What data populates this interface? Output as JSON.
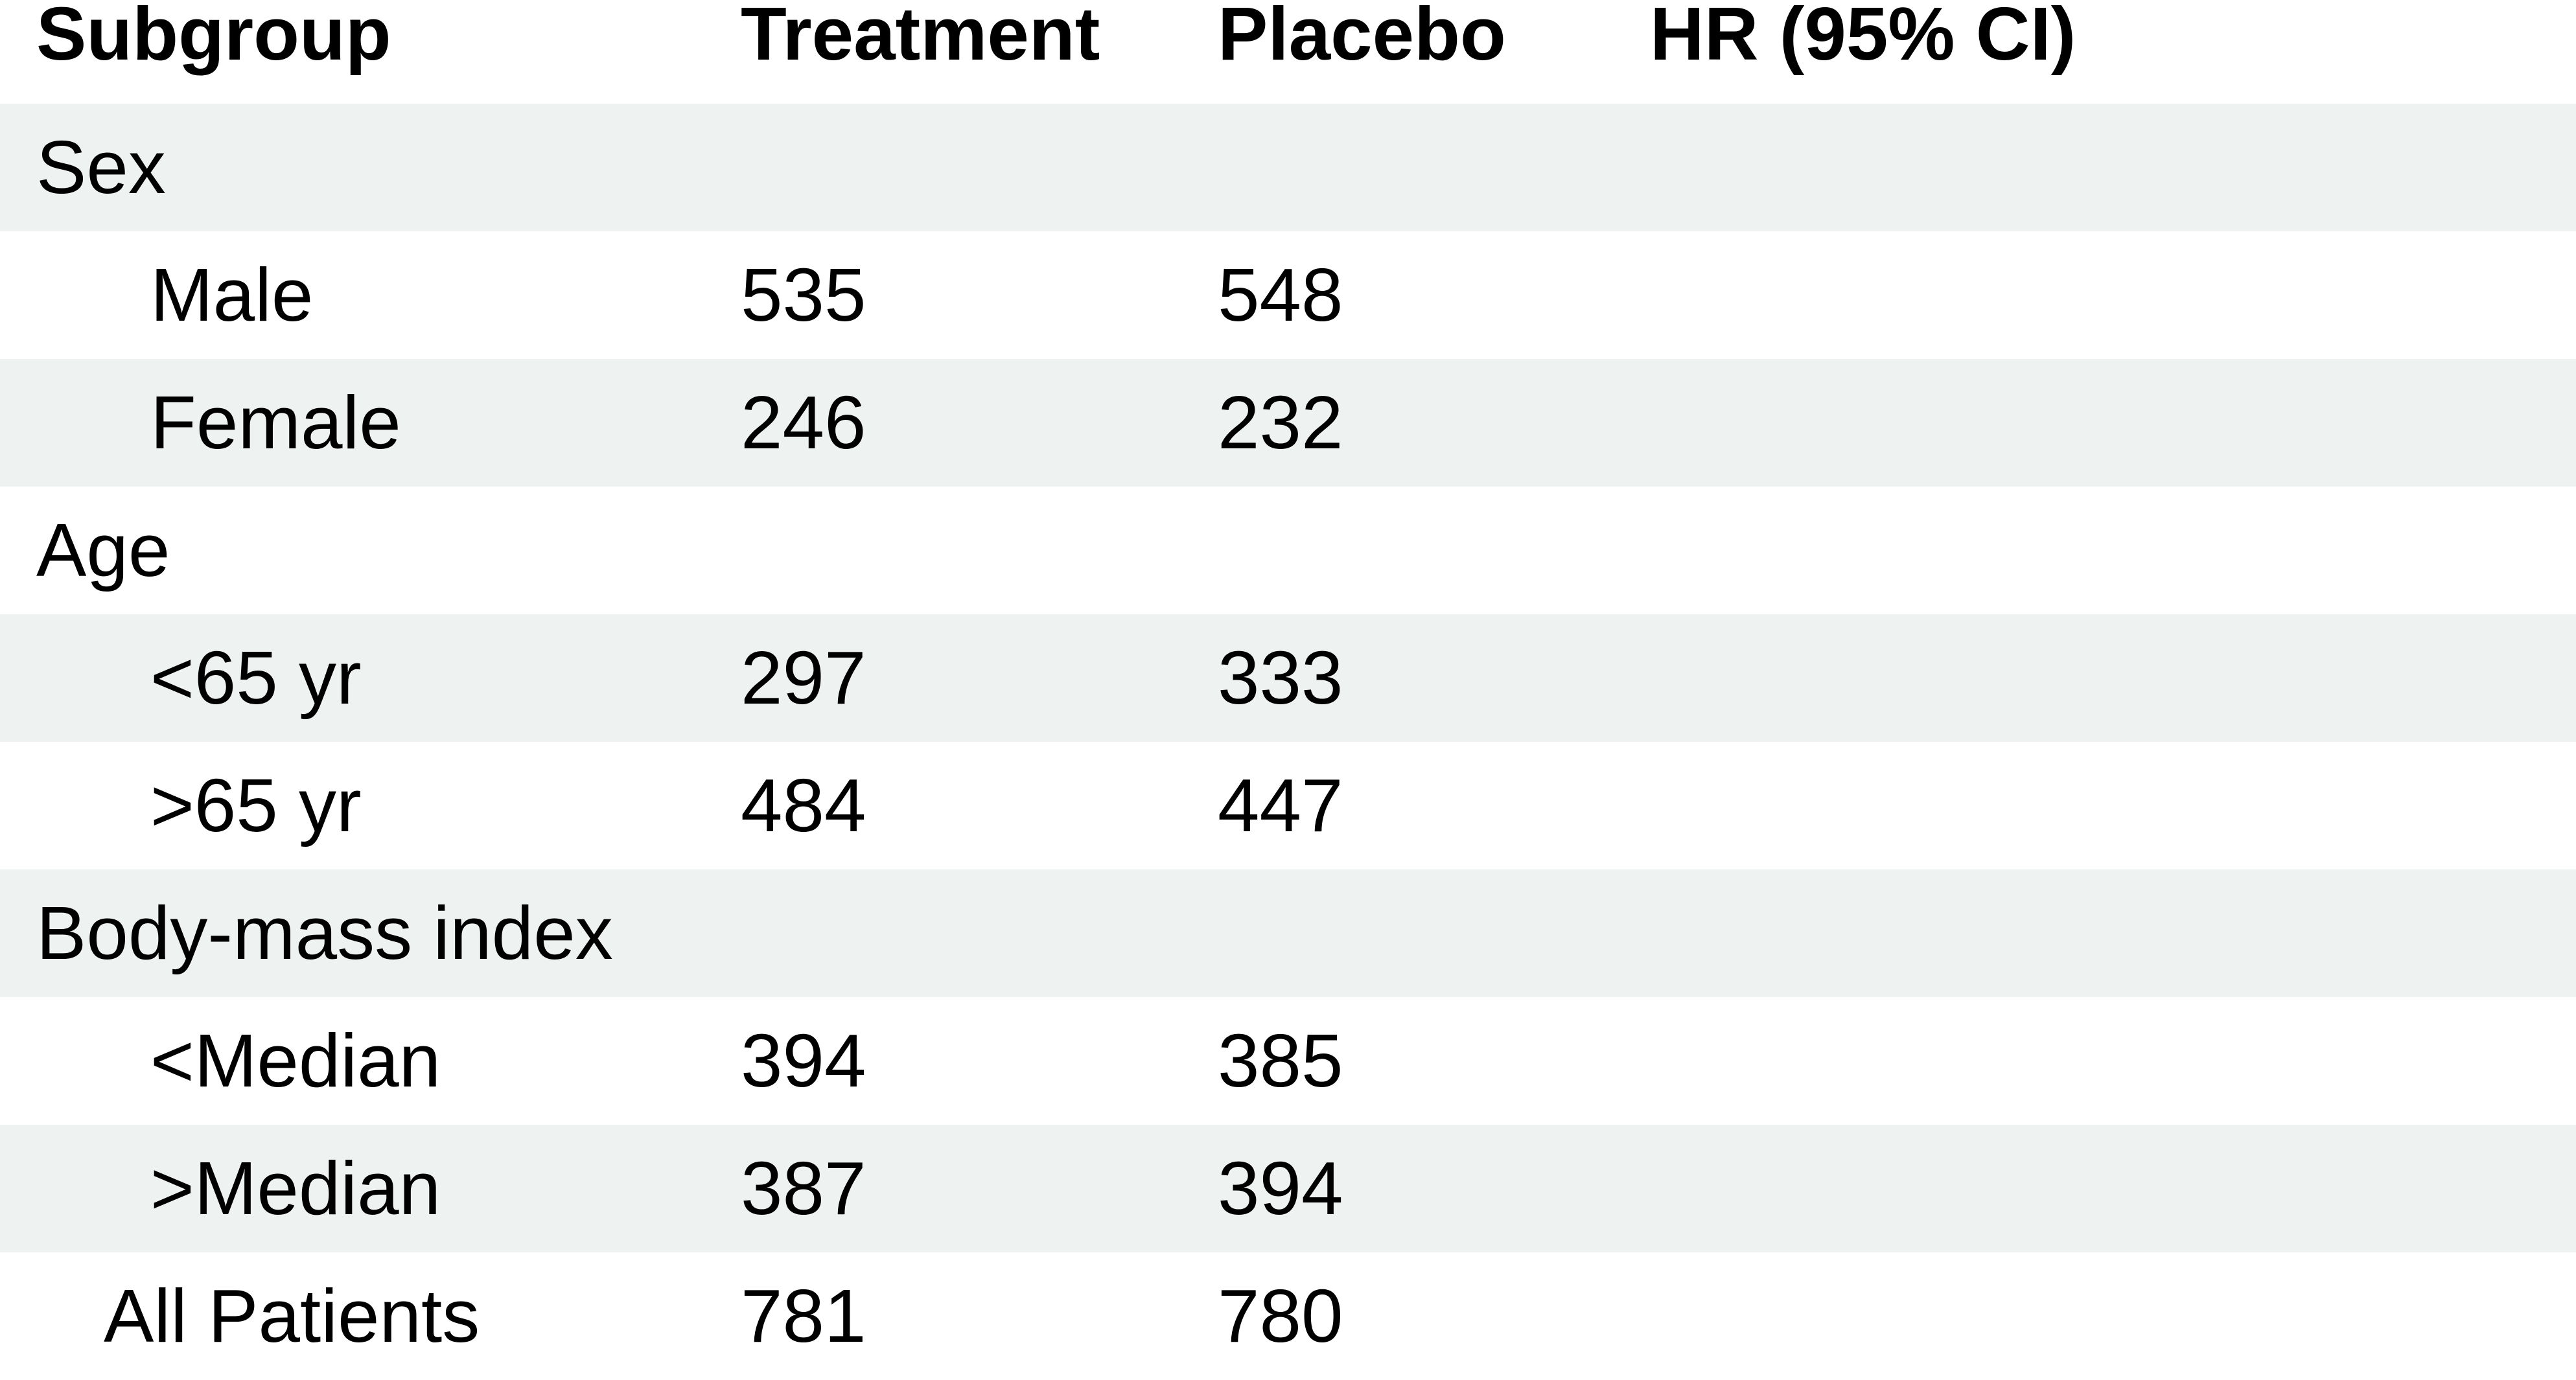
{
  "chart_data": {
    "type": "table",
    "columns": [
      "Subgroup",
      "Treatment",
      "Placebo",
      "HR (95% CI)"
    ],
    "rows": [
      {
        "label": "Sex",
        "kind": "group",
        "treatment": "",
        "placebo": "",
        "hr": "",
        "shaded": true
      },
      {
        "label": "Male",
        "kind": "sub",
        "treatment": "535",
        "placebo": "548",
        "hr": "",
        "shaded": false
      },
      {
        "label": "Female",
        "kind": "sub",
        "treatment": "246",
        "placebo": "232",
        "hr": "",
        "shaded": true
      },
      {
        "label": "Age",
        "kind": "group",
        "treatment": "",
        "placebo": "",
        "hr": "",
        "shaded": false
      },
      {
        "label": "<65 yr",
        "kind": "sub",
        "treatment": "297",
        "placebo": "333",
        "hr": "",
        "shaded": true
      },
      {
        "label": ">65 yr",
        "kind": "sub",
        "treatment": "484",
        "placebo": "447",
        "hr": "",
        "shaded": false
      },
      {
        "label": "Body-mass index",
        "kind": "group",
        "treatment": "",
        "placebo": "",
        "hr": "",
        "shaded": true
      },
      {
        "label": "<Median",
        "kind": "sub",
        "treatment": "394",
        "placebo": "385",
        "hr": "",
        "shaded": false
      },
      {
        "label": ">Median",
        "kind": "sub",
        "treatment": "387",
        "placebo": "394",
        "hr": "",
        "shaded": true
      },
      {
        "label": "All Patients",
        "kind": "total",
        "treatment": "781",
        "placebo": "780",
        "hr": "",
        "shaded": false
      }
    ],
    "colors": {
      "shaded_row": "#eef2f1",
      "plain_row": "#ffffff",
      "text": "#000000"
    }
  }
}
